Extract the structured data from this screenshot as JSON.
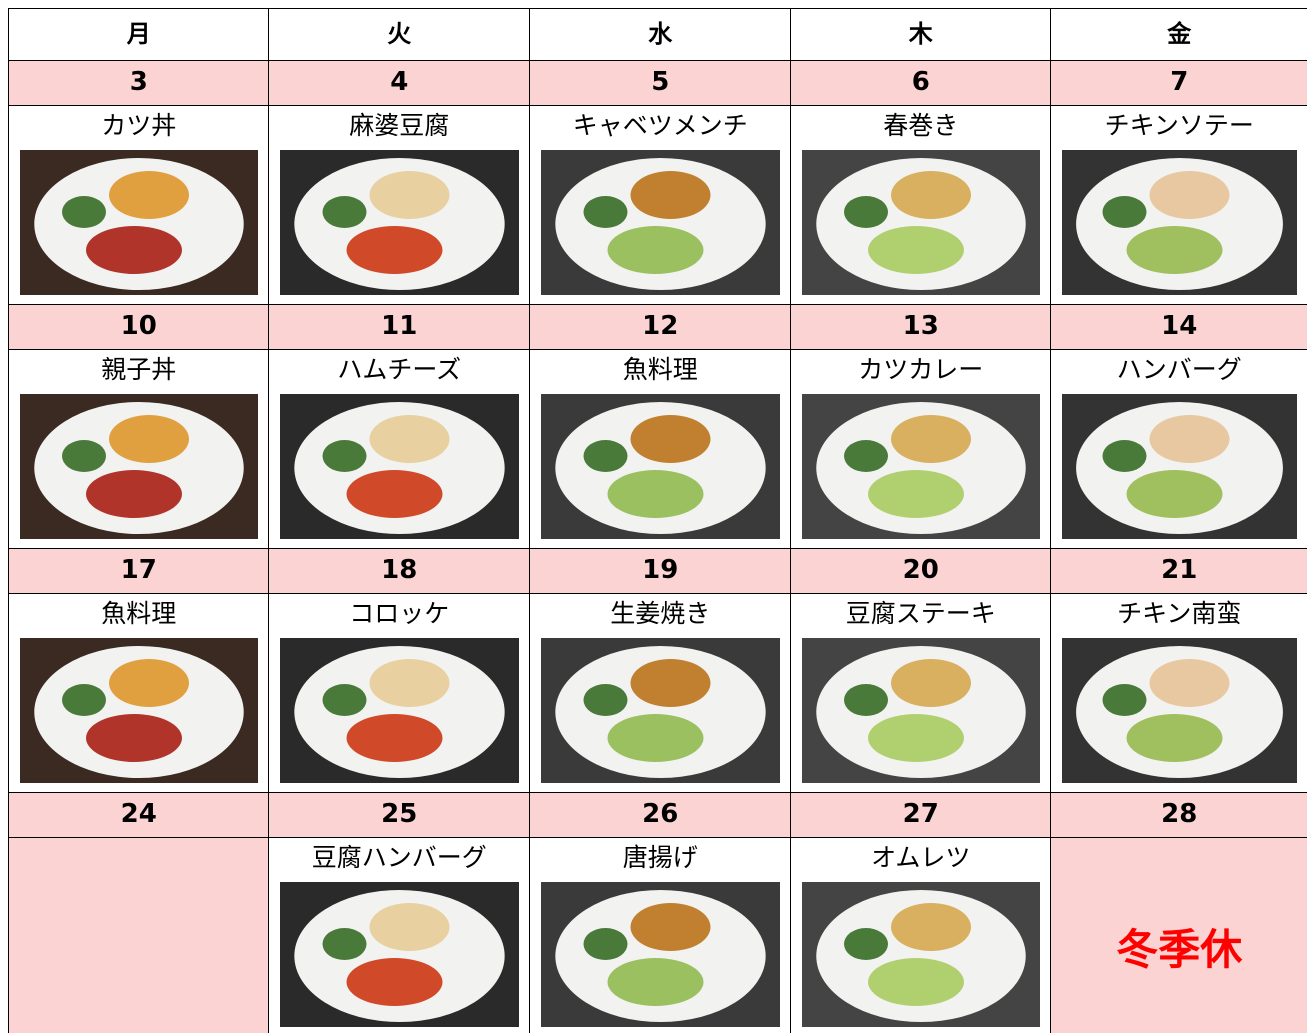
{
  "header": {
    "days": [
      "月",
      "火",
      "水",
      "木",
      "金"
    ]
  },
  "weeks": [
    {
      "cells": [
        {
          "date": 3,
          "dish": "カツ丼"
        },
        {
          "date": 4,
          "dish": "麻婆豆腐"
        },
        {
          "date": 5,
          "dish": "キャベツメンチ"
        },
        {
          "date": 6,
          "dish": "春巻き"
        },
        {
          "date": 7,
          "dish": "チキンソテー"
        }
      ]
    },
    {
      "cells": [
        {
          "date": 10,
          "dish": "親子丼"
        },
        {
          "date": 11,
          "dish": "ハムチーズ"
        },
        {
          "date": 12,
          "dish": "魚料理"
        },
        {
          "date": 13,
          "dish": "カツカレー"
        },
        {
          "date": 14,
          "dish": "ハンバーグ"
        }
      ]
    },
    {
      "cells": [
        {
          "date": 17,
          "dish": "魚料理"
        },
        {
          "date": 18,
          "dish": "コロッケ"
        },
        {
          "date": 19,
          "dish": "生姜焼き"
        },
        {
          "date": 20,
          "dish": "豆腐ステーキ"
        },
        {
          "date": 21,
          "dish": "チキン南蛮"
        }
      ]
    },
    {
      "cells": [
        {
          "date": 24
        },
        {
          "date": 25,
          "dish": "豆腐ハンバーグ"
        },
        {
          "date": 26,
          "dish": "唐揚げ"
        },
        {
          "date": 27,
          "dish": "オムレツ"
        },
        {
          "date": 28,
          "note": "冬季休"
        }
      ]
    }
  ]
}
